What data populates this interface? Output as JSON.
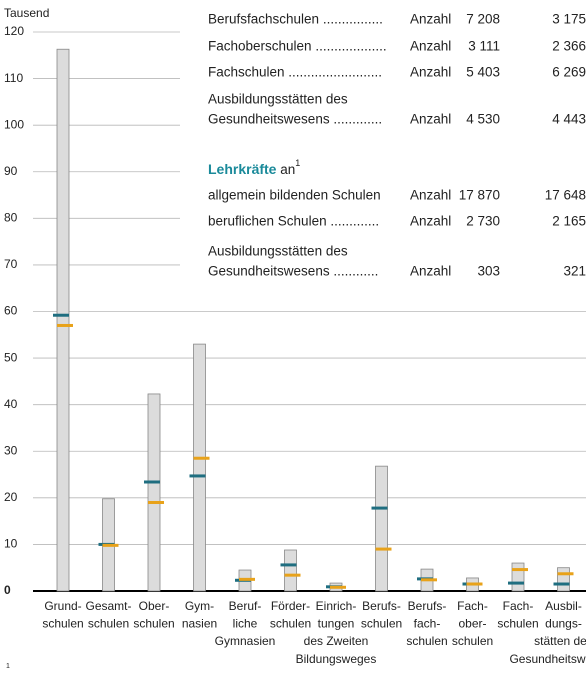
{
  "chart_data": {
    "type": "bar",
    "y_label": "Tausend",
    "categories": [
      [
        "Grund-",
        "schulen"
      ],
      [
        "Gesamt-",
        "schulen"
      ],
      [
        "Ober-",
        "schulen"
      ],
      [
        "Gym-",
        "nasien"
      ],
      [
        "Beruf-",
        "liche",
        "Gymnasien"
      ],
      [
        "Förder-",
        "schulen"
      ],
      [
        "Einrich-",
        "tungen",
        "des Zweiten",
        "Bildungsweges"
      ],
      [
        "Berufs-",
        "schulen"
      ],
      [
        "Berufs-",
        "fach-",
        "schulen"
      ],
      [
        "Fach-",
        "ober-",
        "schulen"
      ],
      [
        "Fach-",
        "schulen"
      ],
      [
        "Ausbil-",
        "dungs-",
        "stätten des",
        "Gesundheitswesens"
      ]
    ],
    "values": [
      116.3,
      19.8,
      42.3,
      53,
      4.5,
      8.8,
      1.7,
      26.8,
      4.7,
      2.8,
      6,
      5
    ],
    "color": "#dcdcdc",
    "series": [
      {
        "color": "#1f6e80",
        "values": [
          59.2,
          10,
          23.4,
          24.7,
          2.3,
          5.6,
          0.9,
          17.8,
          2.6,
          1.5,
          1.7,
          1.5
        ]
      },
      {
        "color": "#e8a21a",
        "values": [
          57,
          9.8,
          19,
          28.5,
          2.5,
          3.4,
          0.8,
          9,
          2.4,
          1.5,
          4.6,
          3.7
        ]
      }
    ],
    "ylim": [
      0,
      120
    ],
    "yticks": [
      0,
      10,
      20,
      30,
      40,
      50,
      60,
      70,
      80,
      90,
      100,
      110,
      120
    ],
    "grid": true
  },
  "table": {
    "rows": [
      {
        "label": [
          "Berufsfachschulen ................"
        ],
        "unit": "Anzahl",
        "a": "7 208",
        "b": "3 175"
      },
      {
        "label": [
          "Fachoberschulen ..................."
        ],
        "unit": "Anzahl",
        "a": "3 111",
        "b": "2 366"
      },
      {
        "label": [
          "Fachschulen ........................."
        ],
        "unit": "Anzahl",
        "a": "5 403",
        "b": "6 269"
      },
      {
        "label": [
          "Ausbildungsstätten des",
          "Gesundheitswesens ............."
        ],
        "unit": "Anzahl",
        "a": "4 530",
        "b": "4 443"
      }
    ],
    "heading": {
      "bold": "Lehrkräfte",
      "rest": " an",
      "sup": "1"
    },
    "rows2": [
      {
        "label": [
          "allgemein bildenden Schulen"
        ],
        "unit": "Anzahl",
        "a": "17 870",
        "b": "17 648"
      },
      {
        "label": [
          "beruflichen Schulen ............."
        ],
        "unit": "Anzahl",
        "a": "2 730",
        "b": "2 165"
      },
      {
        "label": [
          "Ausbildungsstätten des",
          "Gesundheitswesens ............"
        ],
        "unit": "Anzahl",
        "a": "303",
        "b": "321"
      }
    ]
  },
  "footnote": "1"
}
